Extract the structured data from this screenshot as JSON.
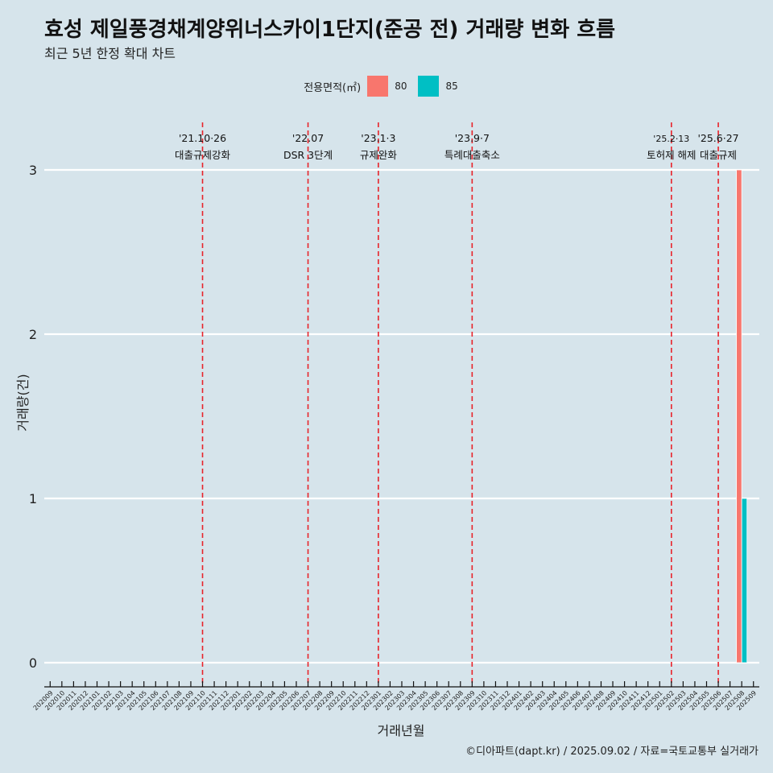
{
  "header": {
    "title": "효성 제일풍경채계양위너스카이1단지(준공 전) 거래량 변화 흐름",
    "subtitle": "최근 5년 한정 확대 차트"
  },
  "legend": {
    "title": "전용면적(㎡)",
    "items": [
      {
        "label": "80",
        "color": "#f8766d"
      },
      {
        "label": "85",
        "color": "#00bfc4"
      }
    ]
  },
  "caption": "©디아파트(dapt.kr) / 2025.09.02 / 자료=국토교통부 실거래가",
  "chart_data": {
    "type": "bar",
    "xlabel": "거래년월",
    "ylabel": "거래량(건)",
    "ylim": [
      0,
      3
    ],
    "yticks": [
      0,
      1,
      2,
      3
    ],
    "grid": true,
    "legend_position": "top",
    "categories": [
      "202009",
      "202010",
      "202011",
      "202012",
      "202101",
      "202102",
      "202103",
      "202104",
      "202105",
      "202106",
      "202107",
      "202108",
      "202109",
      "202110",
      "202111",
      "202112",
      "202201",
      "202202",
      "202203",
      "202204",
      "202205",
      "202206",
      "202207",
      "202208",
      "202209",
      "202210",
      "202211",
      "202212",
      "202301",
      "202302",
      "202303",
      "202304",
      "202305",
      "202306",
      "202307",
      "202308",
      "202309",
      "202310",
      "202311",
      "202312",
      "202401",
      "202402",
      "202403",
      "202404",
      "202405",
      "202406",
      "202407",
      "202408",
      "202409",
      "202410",
      "202411",
      "202412",
      "202501",
      "202502",
      "202503",
      "202504",
      "202505",
      "202506",
      "202507",
      "202508",
      "202509"
    ],
    "series": [
      {
        "name": "80",
        "color": "#f8766d",
        "points": [
          {
            "x": "202508",
            "y": 3
          }
        ]
      },
      {
        "name": "85",
        "color": "#00bfc4",
        "points": [
          {
            "x": "202508",
            "y": 1
          }
        ]
      }
    ],
    "events": [
      {
        "date": "'21.10·26",
        "label": "대출규제강화",
        "x": "202110"
      },
      {
        "date": "'22.07",
        "label": "DSR 3단계",
        "x": "202207"
      },
      {
        "date": "'23.1·3",
        "label": "규제완화",
        "x": "202301"
      },
      {
        "date": "'23.9·7",
        "label": "특례대출축소",
        "x": "202309"
      },
      {
        "date": "'25.2·13",
        "label": "토허제 해제",
        "x": "202502"
      },
      {
        "date": "'25.6·27",
        "label": "대출규제",
        "x": "202506"
      }
    ]
  }
}
